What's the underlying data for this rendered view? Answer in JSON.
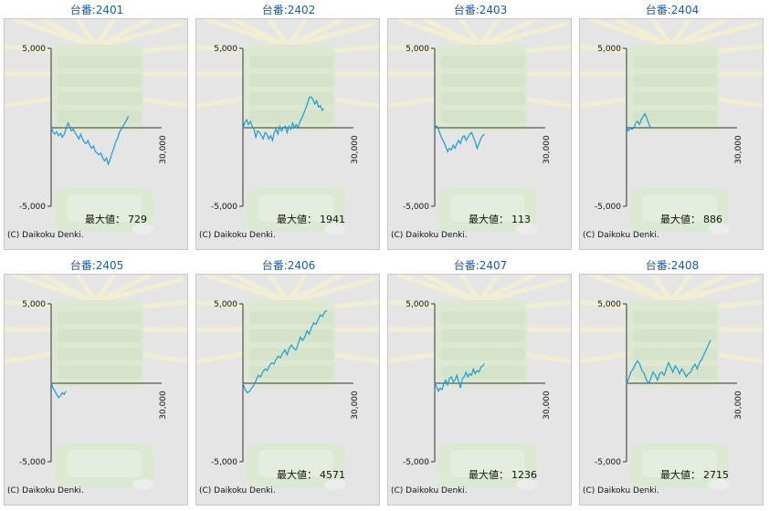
{
  "common": {
    "copyright": "(C) Daikoku Denki.",
    "max_label": "最大値：",
    "y_tick_top": "5,000",
    "y_tick_bottom": "-5,000",
    "x_tick": "30,000",
    "line_color": "#1a9ad6"
  },
  "chart_data": [
    {
      "type": "line",
      "title": "台番:2401",
      "max_value": "729",
      "xlim": [
        0,
        30000
      ],
      "ylim": [
        -5000,
        5000
      ],
      "x": [
        0,
        500,
        1000,
        1500,
        2000,
        2600,
        3000,
        3600,
        4000,
        4600,
        5000,
        5500,
        6000,
        6500,
        7000,
        7500,
        8000,
        8500,
        9000,
        9500,
        10000,
        10500,
        11000,
        11500,
        12000,
        12500,
        13000,
        13500,
        14000,
        14500,
        15000,
        15500,
        16000,
        16500,
        17000,
        17500,
        18000,
        18500,
        19000,
        19500,
        20000,
        20500,
        21000
      ],
      "y": [
        0,
        -250,
        -400,
        -250,
        -500,
        -350,
        -600,
        -400,
        -100,
        300,
        100,
        -200,
        -100,
        -300,
        -500,
        -700,
        -400,
        -700,
        -900,
        -1000,
        -800,
        -1100,
        -1300,
        -1150,
        -1500,
        -1600,
        -1700,
        -1600,
        -1900,
        -2100,
        -1900,
        -2300,
        -2000,
        -1600,
        -1300,
        -900,
        -700,
        -300,
        -100,
        100,
        300,
        500,
        729
      ],
      "grid": false
    },
    {
      "type": "line",
      "title": "台番:2402",
      "max_value": "1941",
      "xlim": [
        0,
        30000
      ],
      "ylim": [
        -5000,
        5000
      ],
      "x": [
        0,
        500,
        1000,
        1500,
        2000,
        2500,
        3000,
        3500,
        4000,
        4500,
        5000,
        5500,
        6000,
        6500,
        7000,
        7500,
        8000,
        8500,
        9000,
        9500,
        10000,
        10500,
        11000,
        11500,
        12000,
        12500,
        13000,
        13500,
        14000,
        14500,
        15000,
        15500,
        16000,
        16500,
        17000,
        17500,
        18000,
        18500,
        19000,
        19500,
        20000,
        20500,
        21000,
        21500,
        22000
      ],
      "y": [
        0,
        300,
        500,
        200,
        400,
        100,
        -100,
        -600,
        -200,
        -300,
        -500,
        -700,
        -300,
        -400,
        -700,
        -500,
        -800,
        -300,
        -100,
        -400,
        100,
        -200,
        0,
        100,
        -300,
        100,
        -100,
        300,
        0,
        200,
        0,
        400,
        600,
        900,
        1200,
        1500,
        1900,
        1941,
        1800,
        1500,
        1700,
        1300,
        1400,
        1100,
        1200
      ],
      "grid": false
    },
    {
      "type": "line",
      "title": "台番:2403",
      "max_value": "113",
      "xlim": [
        0,
        30000
      ],
      "ylim": [
        -5000,
        5000
      ],
      "x": [
        0,
        500,
        1000,
        1500,
        2000,
        2500,
        3000,
        3500,
        4000,
        4500,
        5000,
        5500,
        6000,
        6500,
        7000,
        7500,
        8000,
        8500,
        9000,
        9500,
        10000,
        10500,
        11000,
        11500,
        12000,
        12500,
        13000,
        13500
      ],
      "y": [
        0,
        113,
        -100,
        -400,
        -700,
        -900,
        -1200,
        -1500,
        -1300,
        -1400,
        -1100,
        -1300,
        -1000,
        -800,
        -1000,
        -600,
        -500,
        -800,
        -600,
        -400,
        -300,
        -600,
        -900,
        -1300,
        -1000,
        -700,
        -500,
        -400
      ],
      "grid": false
    },
    {
      "type": "line",
      "title": "台番:2404",
      "max_value": "886",
      "xlim": [
        0,
        30000
      ],
      "ylim": [
        -5000,
        5000
      ],
      "x": [
        0,
        500,
        1000,
        1500,
        2000,
        2500,
        3000,
        3500,
        4000,
        4500,
        5000,
        5500,
        6000,
        6500
      ],
      "y": [
        0,
        -200,
        0,
        -100,
        0,
        300,
        400,
        200,
        500,
        700,
        886,
        600,
        300,
        0
      ],
      "grid": false
    },
    {
      "type": "line",
      "title": "台番:2405",
      "max_value": "",
      "xlim": [
        0,
        30000
      ],
      "ylim": [
        -5000,
        5000
      ],
      "x": [
        0,
        500,
        1000,
        1500,
        2000,
        2500,
        3000,
        3500,
        4000
      ],
      "y": [
        0,
        -300,
        -500,
        -700,
        -900,
        -800,
        -600,
        -700,
        -500
      ],
      "grid": false
    },
    {
      "type": "line",
      "title": "台番:2406",
      "max_value": "4571",
      "xlim": [
        0,
        30000
      ],
      "ylim": [
        -5000,
        5000
      ],
      "x": [
        0,
        600,
        1200,
        1800,
        2400,
        3000,
        3600,
        4200,
        4800,
        5400,
        6000,
        6600,
        7200,
        7800,
        8400,
        9000,
        9600,
        10200,
        10800,
        11400,
        12000,
        12600,
        13200,
        13800,
        14400,
        15000,
        15600,
        16200,
        16800,
        17400,
        18000,
        18600,
        19200,
        19800,
        20400,
        21000,
        21600,
        22200,
        22800
      ],
      "y": [
        0,
        -400,
        -600,
        -500,
        -300,
        -100,
        200,
        500,
        400,
        700,
        900,
        800,
        1100,
        1300,
        1200,
        1500,
        1700,
        1600,
        1900,
        2100,
        1800,
        2200,
        2400,
        2200,
        2100,
        2500,
        2900,
        2700,
        2900,
        3300,
        3100,
        3500,
        3800,
        3700,
        4000,
        4300,
        4200,
        4500,
        4571
      ],
      "grid": false
    },
    {
      "type": "line",
      "title": "台番:2407",
      "max_value": "1236",
      "xlim": [
        0,
        30000
      ],
      "ylim": [
        -5000,
        5000
      ],
      "x": [
        0,
        500,
        1000,
        1500,
        2000,
        2500,
        3000,
        3500,
        4000,
        4500,
        5000,
        5500,
        6000,
        6500,
        7000,
        7500,
        8000,
        8500,
        9000,
        9500,
        10000,
        10500,
        11000,
        11500,
        12000,
        12500,
        13000,
        13500
      ],
      "y": [
        0,
        -200,
        -500,
        -300,
        -400,
        0,
        200,
        -100,
        300,
        400,
        100,
        200,
        500,
        100,
        -300,
        300,
        400,
        700,
        400,
        600,
        500,
        900,
        600,
        800,
        700,
        1000,
        1100,
        1236
      ],
      "grid": false
    },
    {
      "type": "line",
      "title": "台番:2408",
      "max_value": "2715",
      "xlim": [
        0,
        30000
      ],
      "ylim": [
        -5000,
        5000
      ],
      "x": [
        0,
        600,
        1200,
        1800,
        2400,
        3000,
        3600,
        4200,
        4800,
        5400,
        6000,
        6600,
        7200,
        7800,
        8400,
        9000,
        9600,
        10200,
        10800,
        11400,
        12000,
        12600,
        13200,
        13800,
        14400,
        15000,
        15600,
        16200,
        16800,
        17400,
        18000,
        18600,
        19200,
        19800,
        20400,
        21000,
        21600,
        22200,
        22800
      ],
      "y": [
        0,
        300,
        700,
        900,
        1200,
        1400,
        1200,
        800,
        600,
        200,
        0,
        300,
        700,
        500,
        200,
        600,
        700,
        500,
        900,
        1300,
        1000,
        700,
        1100,
        900,
        600,
        900,
        700,
        400,
        600,
        700,
        1000,
        1200,
        900,
        1300,
        1500,
        1800,
        2100,
        2400,
        2715
      ],
      "grid": false
    }
  ]
}
